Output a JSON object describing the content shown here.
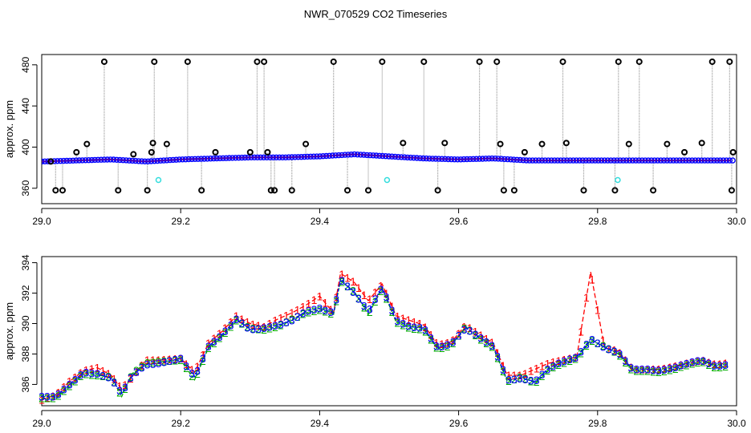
{
  "title": "NWR_070529  CO2 Timeseries",
  "chart_data": [
    {
      "type": "scatter",
      "ylabel": "approx. ppm",
      "xlim": [
        29.0,
        30.0
      ],
      "ylim": [
        345,
        490
      ],
      "xticks": [
        29.0,
        29.2,
        29.4,
        29.6,
        29.8,
        30.0
      ],
      "xtick_labels": [
        "29.0",
        "29.2",
        "29.4",
        "29.6",
        "29.8",
        "30.0"
      ],
      "yticks": [
        360,
        400,
        440,
        480
      ],
      "ytick_labels": [
        "360",
        "400",
        "440",
        "480"
      ],
      "colors": {
        "main": "#0000ff",
        "accent": "#00cc00",
        "baseline": "#ff0000",
        "flagged": "#000000",
        "cal": "#33dddd",
        "spikes": "#999999"
      },
      "series": [
        {
          "marker": "open-circle",
          "x": [
            29.0,
            29.05,
            29.1,
            29.15,
            29.2,
            29.25,
            29.3,
            29.35,
            29.4,
            29.45,
            29.5,
            29.55,
            29.6,
            29.65,
            29.7,
            29.75,
            29.8,
            29.85,
            29.9,
            29.95,
            29.99
          ],
          "y": [
            386,
            387,
            388,
            386,
            388,
            389,
            390,
            390,
            391,
            393,
            391,
            389,
            388,
            389,
            387,
            387,
            387,
            387,
            387,
            387,
            387
          ]
        },
        {
          "marker": "flagged-circle",
          "x": [
            29.013,
            29.02,
            29.03,
            29.05,
            29.065,
            29.09,
            29.11,
            29.132,
            29.152,
            29.158,
            29.16,
            29.162,
            29.18,
            29.21,
            29.23,
            29.25,
            29.3,
            29.31,
            29.32,
            29.325,
            29.33,
            29.335,
            29.36,
            29.38,
            29.42,
            29.44,
            29.47,
            29.49,
            29.52,
            29.55,
            29.57,
            29.58,
            29.63,
            29.655,
            29.66,
            29.665,
            29.68,
            29.695,
            29.72,
            29.75,
            29.755,
            29.78,
            29.825,
            29.83,
            29.845,
            29.86,
            29.88,
            29.9,
            29.925,
            29.95,
            29.965,
            29.99,
            29.993,
            29.995
          ],
          "y": [
            386,
            358,
            358,
            395,
            403,
            483,
            358,
            393,
            358,
            395,
            404,
            483,
            403,
            483,
            358,
            395,
            395,
            483,
            483,
            395,
            358,
            358,
            358,
            403,
            483,
            358,
            358,
            483,
            404,
            483,
            358,
            404,
            483,
            483,
            403,
            358,
            358,
            395,
            403,
            483,
            404,
            358,
            358,
            483,
            403,
            483,
            358,
            403,
            395,
            404,
            483,
            483,
            358,
            395
          ]
        },
        {
          "marker": "cyan-circle",
          "x": [
            29.168,
            29.497,
            29.829
          ],
          "y": [
            368,
            368,
            368
          ]
        }
      ]
    },
    {
      "type": "line",
      "ylabel": "approx. ppm",
      "xlim": [
        29.0,
        30.0
      ],
      "ylim": [
        384.6,
        394.4
      ],
      "xticks": [
        29.0,
        29.2,
        29.4,
        29.6,
        29.8,
        30.0
      ],
      "xtick_labels": [
        "29.0",
        "29.2",
        "29.4",
        "29.6",
        "29.8",
        "30.0"
      ],
      "yticks": [
        386,
        388,
        390,
        392,
        394
      ],
      "ytick_labels": [
        "386",
        "388",
        "390",
        "392",
        "394"
      ],
      "x": [
        29.0,
        29.02,
        29.04,
        29.06,
        29.08,
        29.1,
        29.115,
        29.13,
        29.15,
        29.17,
        29.2,
        29.22,
        29.24,
        29.26,
        29.28,
        29.3,
        29.32,
        29.34,
        29.36,
        29.38,
        29.4,
        29.42,
        29.43,
        29.45,
        29.47,
        29.49,
        29.51,
        29.53,
        29.55,
        29.57,
        29.59,
        29.61,
        29.63,
        29.65,
        29.67,
        29.69,
        29.71,
        29.73,
        29.75,
        29.77,
        29.79,
        29.81,
        29.83,
        29.85,
        29.87,
        29.89,
        29.91,
        29.93,
        29.95,
        29.97,
        29.985
      ],
      "series": [
        {
          "name": "1",
          "color": "#ff0000",
          "values": [
            385.0,
            385.3,
            386.2,
            386.9,
            387.1,
            386.6,
            385.7,
            386.5,
            387.6,
            387.6,
            387.7,
            386.8,
            388.7,
            389.5,
            390.5,
            390.0,
            389.8,
            390.3,
            390.7,
            391.2,
            391.8,
            390.7,
            393.3,
            392.7,
            391.5,
            392.6,
            390.5,
            390.2,
            389.9,
            388.6,
            388.8,
            389.9,
            389.3,
            388.7,
            386.6,
            386.6,
            387.0,
            387.4,
            387.6,
            387.8,
            393.4,
            388.4,
            388.2,
            387.0,
            387.0,
            387.0,
            387.2,
            387.4,
            387.6,
            387.3,
            387.4
          ]
        },
        {
          "name": "2",
          "color": "#00aa00",
          "values": [
            385.1,
            385.1,
            385.9,
            386.7,
            386.6,
            386.5,
            385.2,
            386.7,
            387.4,
            387.5,
            387.6,
            386.3,
            388.4,
            389.2,
            390.2,
            389.7,
            389.6,
            389.8,
            390.3,
            390.7,
            390.9,
            390.6,
            392.8,
            392.1,
            390.6,
            392.3,
            390.1,
            389.7,
            389.6,
            388.3,
            388.6,
            389.8,
            389.0,
            388.4,
            386.2,
            386.5,
            386.1,
            387.0,
            387.4,
            387.7,
            388.9,
            388.5,
            388.0,
            386.9,
            386.9,
            386.8,
            387.0,
            387.3,
            387.5,
            387.1,
            387.2
          ]
        },
        {
          "name": "3",
          "color": "#0000ff",
          "values": [
            385.2,
            385.2,
            386.0,
            386.8,
            386.7,
            386.4,
            385.4,
            386.6,
            387.3,
            387.4,
            387.7,
            386.5,
            388.5,
            389.3,
            390.3,
            389.6,
            389.7,
            389.9,
            390.2,
            390.8,
            391.0,
            390.7,
            392.9,
            392.0,
            390.8,
            392.4,
            390.2,
            389.8,
            389.7,
            388.4,
            388.7,
            389.7,
            389.1,
            388.5,
            386.3,
            386.4,
            386.2,
            387.1,
            387.5,
            387.8,
            389.0,
            388.4,
            388.1,
            387.0,
            387.0,
            386.9,
            387.1,
            387.4,
            387.6,
            387.2,
            387.3
          ]
        }
      ]
    }
  ]
}
